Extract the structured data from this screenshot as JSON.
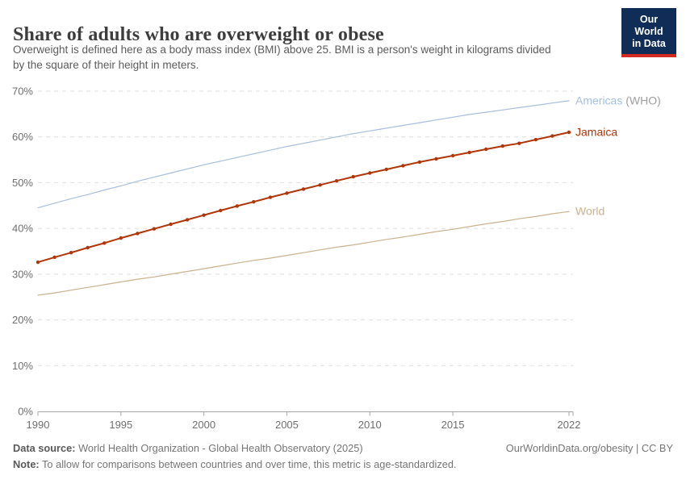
{
  "header": {
    "title": "Share of adults who are overweight or obese",
    "subtitle_lines": [
      "Overweight is defined here as a body mass index (BMI) above 25. BMI is a person's weight in kilograms divided",
      "by the square of their height in meters."
    ],
    "logo": {
      "line1": "Our World",
      "line2": "in Data",
      "bg_color": "#0f2d56",
      "accent_color": "#d42b21"
    }
  },
  "chart_data": {
    "type": "line",
    "title": "Share of adults who are overweight or obese",
    "xlim": [
      1990,
      2022
    ],
    "ylim": [
      0,
      70
    ],
    "x_ticks": [
      1990,
      1995,
      2000,
      2005,
      2010,
      2015,
      2022
    ],
    "y_ticks": [
      0,
      10,
      20,
      30,
      40,
      50,
      60,
      70
    ],
    "y_tick_suffix": "%",
    "grid": "horizontal-dashed",
    "grid_color": "#dedede",
    "axis_color": "#a5a5a5",
    "tick_label_color": "#6e6e6e",
    "legend_position": "labels-at-line-ends",
    "x": [
      1990,
      1991,
      1992,
      1993,
      1994,
      1995,
      1996,
      1997,
      1998,
      1999,
      2000,
      2001,
      2002,
      2003,
      2004,
      2005,
      2006,
      2007,
      2008,
      2009,
      2010,
      2011,
      2012,
      2013,
      2014,
      2015,
      2016,
      2017,
      2018,
      2019,
      2020,
      2021,
      2022
    ],
    "series": [
      {
        "name": "Americas (WHO)",
        "color": "#a7bedc",
        "line_width": 1.2,
        "markers": false,
        "label_parts": [
          {
            "text": "Americas ",
            "color": "#a7bedc"
          },
          {
            "text": "(WHO)",
            "color": "#9e9e9e"
          }
        ],
        "values": [
          44.5,
          45.5,
          46.5,
          47.4,
          48.4,
          49.3,
          50.3,
          51.2,
          52.1,
          53.0,
          53.9,
          54.7,
          55.5,
          56.3,
          57.1,
          57.9,
          58.6,
          59.3,
          60.0,
          60.7,
          61.3,
          61.9,
          62.5,
          63.1,
          63.7,
          64.3,
          64.9,
          65.4,
          65.9,
          66.4,
          66.9,
          67.4,
          67.9
        ]
      },
      {
        "name": "Jamaica",
        "color": "#b13507",
        "line_width": 2,
        "markers": true,
        "label_parts": [
          {
            "text": "Jamaica",
            "color": "#b13507"
          }
        ],
        "values": [
          32.6,
          33.7,
          34.7,
          35.8,
          36.8,
          37.9,
          38.9,
          39.9,
          40.9,
          41.9,
          42.9,
          43.9,
          44.9,
          45.8,
          46.8,
          47.7,
          48.6,
          49.5,
          50.4,
          51.3,
          52.1,
          52.9,
          53.7,
          54.5,
          55.2,
          55.9,
          56.6,
          57.3,
          58.0,
          58.6,
          59.4,
          60.2,
          61.0
        ]
      },
      {
        "name": "World",
        "color": "#cbb18e",
        "line_width": 1.2,
        "markers": false,
        "label_parts": [
          {
            "text": "World",
            "color": "#cbb18e"
          }
        ],
        "values": [
          25.4,
          25.9,
          26.5,
          27.1,
          27.7,
          28.3,
          28.9,
          29.4,
          30.0,
          30.6,
          31.2,
          31.8,
          32.4,
          33.0,
          33.5,
          34.1,
          34.7,
          35.3,
          35.9,
          36.4,
          37.0,
          37.6,
          38.1,
          38.7,
          39.3,
          39.8,
          40.4,
          41.0,
          41.5,
          42.1,
          42.6,
          43.2,
          43.7
        ]
      }
    ]
  },
  "footer": {
    "source_label": "Data source:",
    "source_text": " World Health Organization - Global Health Observatory (2025)",
    "note_label": "Note:",
    "note_text": " To allow for comparisons between countries and over time, this metric is age-standardized.",
    "right_text": "OurWorldinData.org/obesity | CC BY"
  }
}
